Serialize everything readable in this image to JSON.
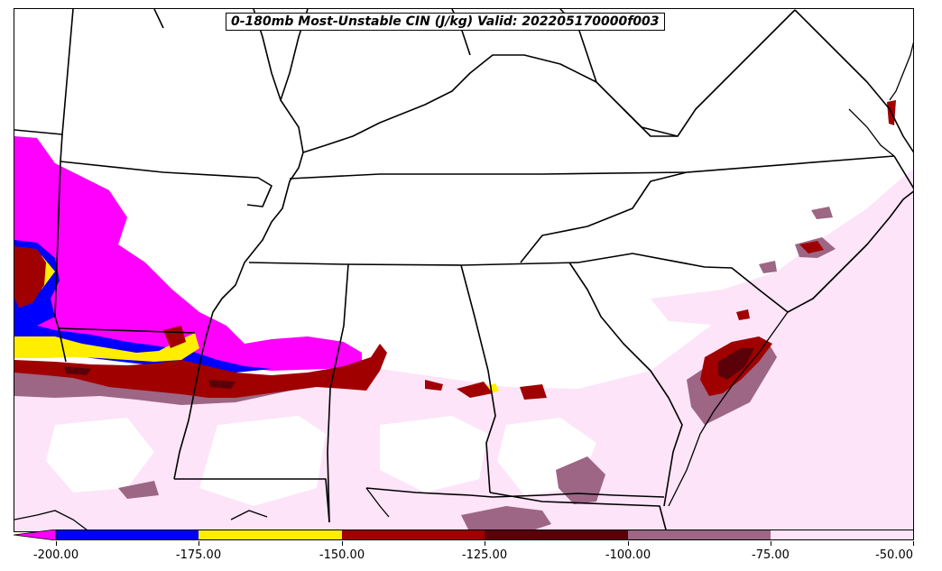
{
  "title": "0-180mb Most-Unstable CIN (J/kg) Valid: 202205170000f003",
  "colorbar": {
    "ticks": [
      "-200.00",
      "-175.00",
      "-150.00",
      "-125.00",
      "-100.00",
      "-75.00",
      "-50.00"
    ],
    "bins": [
      {
        "range": "< -200",
        "color": "#ff00ff"
      },
      {
        "range": "-200 to -175",
        "color": "#0000ff"
      },
      {
        "range": "-175 to -150",
        "color": "#ffee00"
      },
      {
        "range": "-150 to -125",
        "color": "#a00000"
      },
      {
        "range": "-125 to -100",
        "color": "#5a0008"
      },
      {
        "range": "-100 to -75",
        "color": "#9c6684"
      },
      {
        "range": "-75 to -50",
        "color": "#fde4f8"
      }
    ]
  },
  "map": {
    "fields": [
      "most-unstable CIN shading"
    ],
    "boundaries": [
      "state borders",
      "coastline"
    ]
  }
}
